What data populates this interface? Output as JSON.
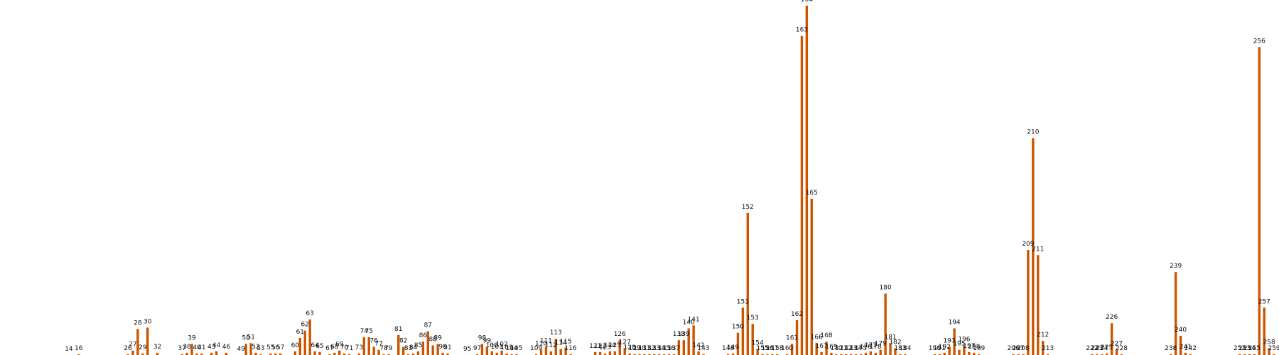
{
  "chart_data": {
    "type": "bar",
    "bar_color": "#cc5500",
    "grid": false,
    "legend": "none",
    "xlim": [
      0,
      260
    ],
    "ylim": [
      0,
      470
    ],
    "title": "",
    "xlabel": "",
    "ylabel": "",
    "x_values": [
      14,
      16,
      26,
      27,
      28,
      29,
      30,
      32,
      37,
      38,
      39,
      40,
      41,
      43,
      44,
      46,
      49,
      50,
      51,
      52,
      53,
      55,
      56,
      57,
      60,
      61,
      62,
      63,
      64,
      65,
      67,
      68,
      69,
      70,
      71,
      73,
      74,
      75,
      76,
      77,
      78,
      79,
      81,
      82,
      83,
      84,
      85,
      86,
      87,
      88,
      89,
      90,
      91,
      95,
      97,
      98,
      99,
      100,
      101,
      102,
      103,
      104,
      105,
      109,
      110,
      111,
      112,
      113,
      114,
      115,
      116,
      121,
      122,
      123,
      124,
      125,
      126,
      127,
      128,
      129,
      130,
      131,
      132,
      133,
      134,
      135,
      136,
      137,
      138,
      139,
      140,
      141,
      142,
      143,
      148,
      149,
      150,
      151,
      152,
      153,
      154,
      155,
      156,
      157,
      158,
      160,
      161,
      162,
      163,
      164,
      165,
      166,
      167,
      168,
      169,
      170,
      171,
      172,
      173,
      174,
      175,
      176,
      177,
      178,
      179,
      180,
      181,
      182,
      183,
      184,
      190,
      191,
      192,
      193,
      194,
      195,
      196,
      197,
      198,
      199,
      206,
      207,
      208,
      209,
      210,
      211,
      212,
      213,
      222,
      223,
      224,
      225,
      226,
      227,
      228,
      238,
      239,
      240,
      241,
      242,
      252,
      253,
      254,
      255,
      256,
      257,
      258,
      259
    ],
    "y_values": [
      0,
      1,
      1,
      6,
      35,
      2,
      37,
      3,
      1,
      3,
      15,
      2,
      2,
      3,
      5,
      3,
      0,
      15,
      16,
      3,
      1,
      2,
      2,
      2,
      5,
      23,
      33,
      48,
      5,
      4,
      1,
      3,
      6,
      2,
      1,
      2,
      24,
      24,
      11,
      7,
      1,
      1,
      27,
      11,
      1,
      2,
      5,
      18,
      32,
      13,
      15,
      3,
      2,
      0,
      1,
      15,
      11,
      5,
      3,
      6,
      2,
      1,
      1,
      1,
      7,
      11,
      5,
      22,
      8,
      10,
      1,
      4,
      4,
      2,
      5,
      5,
      20,
      9,
      2,
      1,
      1,
      1,
      1,
      1,
      1,
      1,
      1,
      1,
      20,
      20,
      36,
      40,
      5,
      1,
      1,
      2,
      30,
      64,
      192,
      42,
      8,
      1,
      1,
      1,
      1,
      1,
      15,
      47,
      431,
      472,
      211,
      16,
      4,
      18,
      3,
      1,
      1,
      1,
      1,
      1,
      1,
      3,
      5,
      3,
      7,
      83,
      16,
      9,
      1,
      1,
      1,
      1,
      3,
      11,
      36,
      7,
      13,
      4,
      3,
      1,
      1,
      1,
      1,
      142,
      293,
      135,
      19,
      1,
      1,
      1,
      1,
      2,
      43,
      7,
      1,
      1,
      112,
      26,
      3,
      1,
      1,
      1,
      1,
      1,
      416,
      64,
      9,
      1
    ],
    "data_labels": [
      "14",
      "16",
      "26",
      "27",
      "28",
      "29",
      "30",
      "32",
      "37",
      "38",
      "39",
      "40",
      "41",
      "43",
      "44",
      "46",
      "49",
      "50",
      "51",
      "52",
      "53",
      "55",
      "56",
      "57",
      "60",
      "61",
      "62",
      "63",
      "64",
      "65",
      "67",
      "68",
      "69",
      "70",
      "71",
      "73",
      "74",
      "75",
      "76",
      "77",
      "78",
      "79",
      "81",
      "82",
      "83",
      "84",
      "85",
      "86",
      "87",
      "88",
      "89",
      "90",
      "91",
      "95",
      "97",
      "98",
      "99",
      "100",
      "101",
      "102",
      "103",
      "104",
      "105",
      "109",
      "110",
      "111",
      "112",
      "113",
      "114",
      "115",
      "116",
      "121",
      "122",
      "123",
      "124",
      "125",
      "126",
      "127",
      "128",
      "129",
      "130",
      "131",
      "132",
      "133",
      "134",
      "135",
      "136",
      "137",
      "138",
      "139",
      "140",
      "141",
      "142",
      "143",
      "148",
      "149",
      "150",
      "151",
      "152",
      "153",
      "154",
      "155",
      "156",
      "157",
      "158",
      "160",
      "161",
      "162",
      "163",
      "164",
      "165",
      "166",
      "167",
      "168",
      "169",
      "170",
      "171",
      "172",
      "173",
      "174",
      "175",
      "176",
      "177",
      "178",
      "179",
      "180",
      "181",
      "182",
      "183",
      "184",
      "190",
      "191",
      "192",
      "193",
      "194",
      "195",
      "196",
      "197",
      "198",
      "199",
      "206",
      "207",
      "208",
      "209",
      "210",
      "211",
      "212",
      "213",
      "222",
      "223",
      "224",
      "225",
      "226",
      "227",
      "228",
      "238",
      "239",
      "240",
      "241",
      "242",
      "252",
      "253",
      "254",
      "255",
      "256",
      "257",
      "258",
      "259"
    ]
  }
}
